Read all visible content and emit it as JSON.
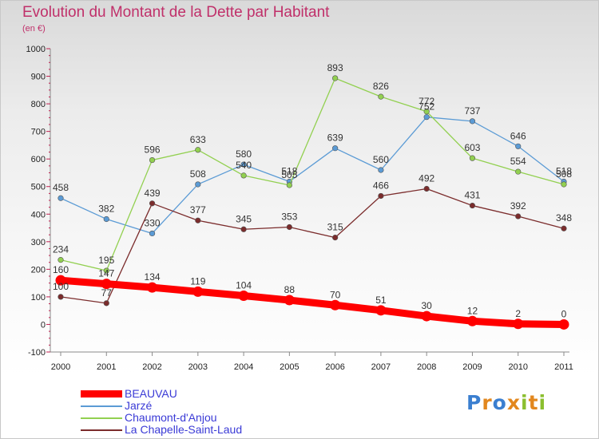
{
  "title": "Evolution du Montant de la Dette par Habitant",
  "subtitle": "(en €)",
  "logo": [
    "P",
    "r",
    "o",
    "x",
    "i",
    "t",
    "i"
  ],
  "logo_colors": [
    "#3b7fd0",
    "#e2871e",
    "#3b7fd0",
    "#e2871e",
    "#8bbf2f",
    "#e2871e",
    "#8bbf2f"
  ],
  "chart_data": {
    "type": "line",
    "title": "Evolution du Montant de la Dette par Habitant",
    "subtitle": "(en €)",
    "xlabel": "",
    "ylabel": "",
    "ylim": [
      -100,
      1000
    ],
    "yticks": [
      -100,
      0,
      100,
      200,
      300,
      400,
      500,
      600,
      700,
      800,
      900,
      1000
    ],
    "grid": false,
    "legend_position": "bottom-left",
    "categories": [
      "2000",
      "2001",
      "2002",
      "2003",
      "2004",
      "2005",
      "2006",
      "2007",
      "2008",
      "2009",
      "2010",
      "2011"
    ],
    "series": [
      {
        "name": "BEAUVAU",
        "color": "#ff0000",
        "values": [
          160,
          147,
          134,
          119,
          104,
          88,
          70,
          51,
          30,
          12,
          2,
          0
        ]
      },
      {
        "name": "Jarzé",
        "color": "#5b9bd5",
        "values": [
          458,
          382,
          330,
          508,
          580,
          518,
          639,
          560,
          752,
          737,
          646,
          518
        ]
      },
      {
        "name": "Chaumont-d'Anjou",
        "color": "#92d050",
        "values": [
          234,
          195,
          596,
          633,
          540,
          505,
          893,
          826,
          772,
          603,
          554,
          508
        ]
      },
      {
        "name": "La Chapelle-Saint-Laud",
        "color": "#7b2c2c",
        "values": [
          100,
          77,
          439,
          377,
          345,
          353,
          315,
          466,
          492,
          431,
          392,
          348
        ]
      }
    ]
  }
}
